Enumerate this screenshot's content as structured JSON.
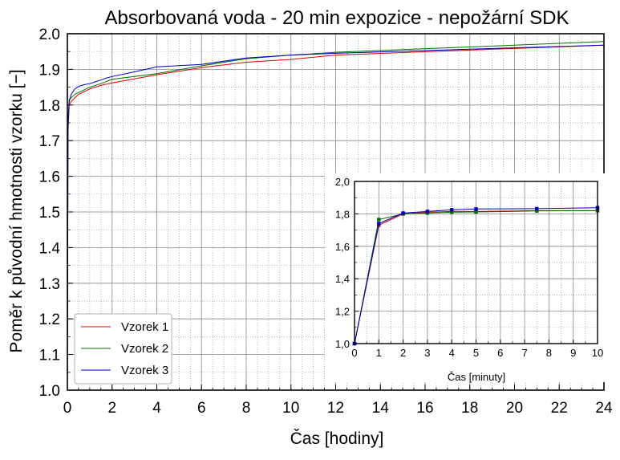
{
  "chart_data": [
    {
      "type": "line",
      "title": "Absorbovaná voda - 20 min expozice - nepožární SDK",
      "xlabel": "Čas   [hodiny]",
      "ylabel": "Poměr k původní hmotnosti vzorku  [−]",
      "xlim": [
        0,
        24
      ],
      "ylim": [
        1.0,
        2.0
      ],
      "x_ticks": [
        "0",
        "2",
        "4",
        "6",
        "8",
        "10",
        "12",
        "14",
        "16",
        "18",
        "20",
        "22",
        "24"
      ],
      "y_ticks": [
        "1.0",
        "1.1",
        "1.2",
        "1.3",
        "1.4",
        "1.5",
        "1.6",
        "1.7",
        "1.8",
        "1.9",
        "2.0"
      ],
      "grid": true,
      "legend_position": "bottom-left",
      "series": [
        {
          "name": "Vzorek 1",
          "color": "#e00000",
          "x": [
            0,
            0.03,
            0.083,
            0.167,
            0.333,
            0.5,
            1,
            1.5,
            2,
            4,
            6,
            8,
            10,
            12,
            24
          ],
          "y": [
            1.0,
            1.72,
            1.8,
            1.81,
            1.82,
            1.83,
            1.845,
            1.855,
            1.862,
            1.885,
            1.905,
            1.92,
            1.928,
            1.94,
            1.968
          ]
        },
        {
          "name": "Vzorek 2",
          "color": "#007000",
          "x": [
            0,
            0.03,
            0.083,
            0.167,
            0.333,
            0.5,
            1,
            1.5,
            2,
            4,
            6,
            8,
            10,
            12,
            24
          ],
          "y": [
            1.0,
            1.76,
            1.815,
            1.82,
            1.83,
            1.835,
            1.85,
            1.86,
            1.872,
            1.888,
            1.91,
            1.93,
            1.94,
            1.948,
            1.978
          ]
        },
        {
          "name": "Vzorek 3",
          "color": "#0000c0",
          "x": [
            0,
            0.03,
            0.083,
            0.167,
            0.333,
            0.5,
            0.75,
            1,
            1.25,
            1.5,
            1.75,
            2,
            3,
            4,
            6,
            8,
            10,
            12,
            24
          ],
          "y": [
            1.0,
            1.74,
            1.81,
            1.83,
            1.845,
            1.852,
            1.857,
            1.86,
            1.865,
            1.87,
            1.876,
            1.88,
            1.893,
            1.907,
            1.914,
            1.932,
            1.94,
            1.945,
            1.968
          ]
        }
      ]
    },
    {
      "type": "line",
      "title": "",
      "xlabel": "Čas   [minuty]",
      "ylabel": "",
      "xlim": [
        0,
        10
      ],
      "ylim": [
        1.0,
        2.0
      ],
      "x_ticks": [
        "0",
        "1",
        "2",
        "3",
        "4",
        "5",
        "6",
        "7",
        "8",
        "9",
        "10"
      ],
      "y_ticks": [
        "1,0",
        "1,2",
        "1,4",
        "1,6",
        "1,8",
        "2,0"
      ],
      "grid": true,
      "series": [
        {
          "name": "Vzorek 1",
          "color": "#e00000",
          "x": [
            0,
            1,
            2,
            3,
            4,
            5,
            7.5,
            10
          ],
          "y": [
            1.0,
            1.73,
            1.8,
            1.81,
            1.815,
            1.815,
            1.82,
            1.82
          ]
        },
        {
          "name": "Vzorek 2",
          "color": "#007000",
          "x": [
            0,
            1,
            2,
            3,
            4,
            5,
            7.5,
            10
          ],
          "y": [
            1.0,
            1.765,
            1.8,
            1.805,
            1.81,
            1.812,
            1.818,
            1.82
          ]
        },
        {
          "name": "Vzorek 3",
          "color": "#0000c0",
          "x": [
            0,
            1,
            2,
            3,
            4,
            5,
            7.5,
            10
          ],
          "y": [
            1.0,
            1.74,
            1.805,
            1.815,
            1.825,
            1.83,
            1.832,
            1.838
          ]
        }
      ]
    }
  ]
}
